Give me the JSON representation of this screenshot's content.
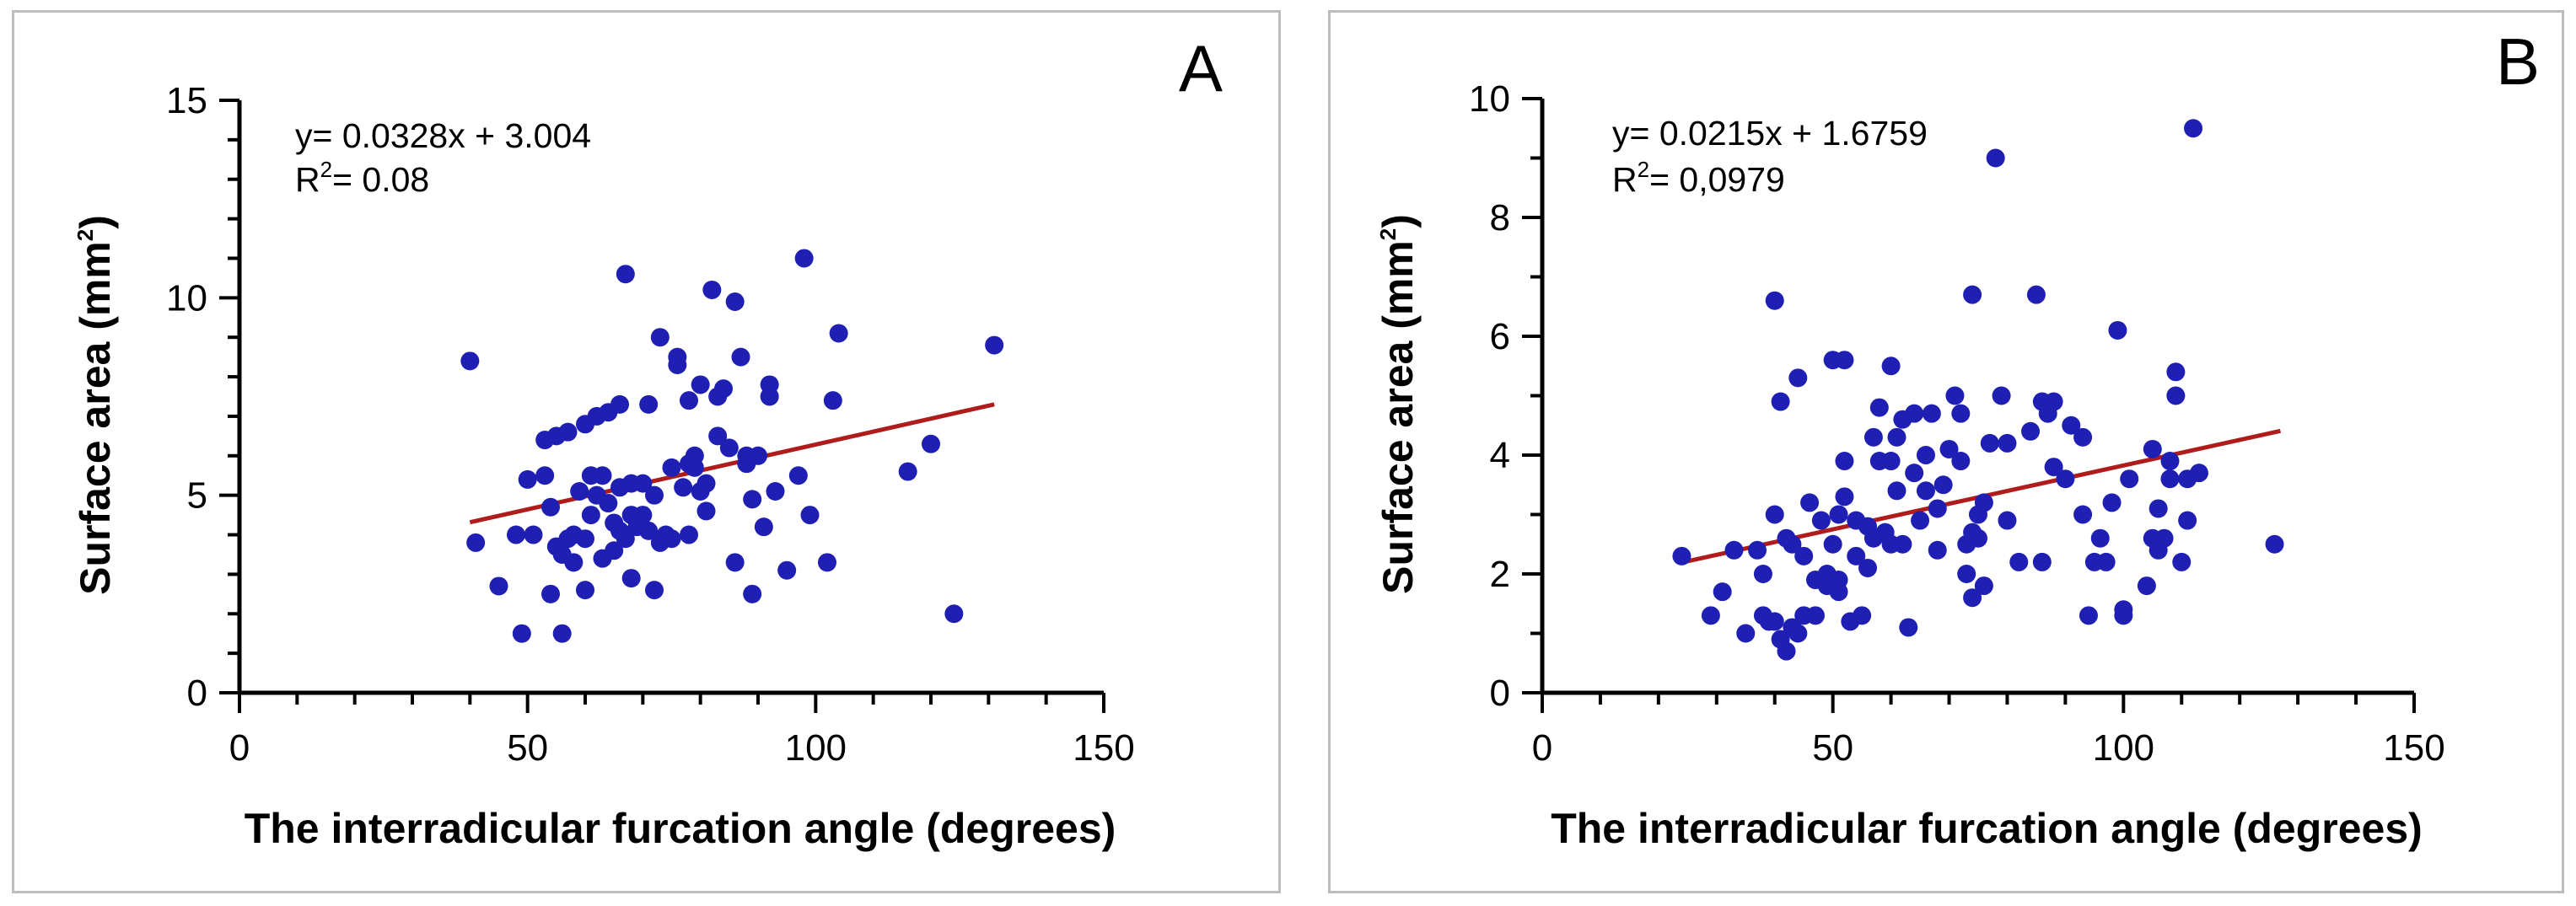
{
  "chart_data": [
    {
      "type": "scatter",
      "panel_label": "A",
      "xlabel": "The interradicular furcation angle (degrees)",
      "ylabel_main": "Surface area (mm",
      "ylabel_sup": "2",
      "ylabel_close": ")",
      "xlim": [
        0,
        150
      ],
      "ylim": [
        0,
        15
      ],
      "x_ticks": [
        0,
        50,
        100,
        150
      ],
      "y_ticks": [
        0,
        5,
        10,
        15
      ],
      "x_tick_labels": [
        "0",
        "50",
        "100",
        "150"
      ],
      "y_tick_labels": [
        "0",
        "5",
        "10",
        "15"
      ],
      "equation": "y= 0.0328x + 3.004",
      "r2_prefix": "R",
      "r2_sup": "2",
      "r2_value": "= 0.08",
      "marker_color": "#1f1fb4",
      "line_color": "#b01c1c",
      "regression": {
        "slope": 0.0328,
        "intercept": 3.004,
        "x_start": 40,
        "x_end": 131
      },
      "points": [
        [
          40,
          8.4
        ],
        [
          41,
          3.8
        ],
        [
          45,
          2.7
        ],
        [
          48,
          4.0
        ],
        [
          49,
          1.5
        ],
        [
          50,
          5.4
        ],
        [
          51,
          4.0
        ],
        [
          53,
          6.4
        ],
        [
          53,
          5.5
        ],
        [
          54,
          2.5
        ],
        [
          54,
          4.7
        ],
        [
          55,
          3.7
        ],
        [
          55,
          6.5
        ],
        [
          56,
          1.5
        ],
        [
          56,
          3.5
        ],
        [
          57,
          3.9
        ],
        [
          57,
          6.6
        ],
        [
          58,
          3.3
        ],
        [
          58,
          4.0
        ],
        [
          59,
          5.1
        ],
        [
          60,
          2.6
        ],
        [
          60,
          3.9
        ],
        [
          60,
          6.8
        ],
        [
          61,
          4.5
        ],
        [
          61,
          5.5
        ],
        [
          62,
          5.0
        ],
        [
          62,
          7.0
        ],
        [
          63,
          3.4
        ],
        [
          63,
          5.5
        ],
        [
          64,
          4.8
        ],
        [
          64,
          7.1
        ],
        [
          65,
          3.6
        ],
        [
          65,
          4.3
        ],
        [
          66,
          4.1
        ],
        [
          66,
          5.2
        ],
        [
          66,
          7.3
        ],
        [
          67,
          10.6
        ],
        [
          67,
          3.9
        ],
        [
          68,
          4.5
        ],
        [
          68,
          5.3
        ],
        [
          68,
          2.9
        ],
        [
          69,
          4.2
        ],
        [
          70,
          5.3
        ],
        [
          70,
          4.5
        ],
        [
          71,
          4.1
        ],
        [
          71,
          7.3
        ],
        [
          72,
          2.6
        ],
        [
          72,
          5.0
        ],
        [
          73,
          3.8
        ],
        [
          73,
          9.0
        ],
        [
          74,
          4.0
        ],
        [
          75,
          5.7
        ],
        [
          75,
          3.9
        ],
        [
          76,
          8.5
        ],
        [
          76,
          8.3
        ],
        [
          77,
          5.2
        ],
        [
          78,
          4.0
        ],
        [
          78,
          5.8
        ],
        [
          78,
          7.4
        ],
        [
          79,
          5.7
        ],
        [
          79,
          6.0
        ],
        [
          80,
          7.8
        ],
        [
          80,
          5.1
        ],
        [
          81,
          5.3
        ],
        [
          81,
          4.6
        ],
        [
          82,
          10.2
        ],
        [
          83,
          7.5
        ],
        [
          83,
          6.5
        ],
        [
          84,
          7.7
        ],
        [
          85,
          6.2
        ],
        [
          86,
          9.9
        ],
        [
          86,
          3.3
        ],
        [
          87,
          8.5
        ],
        [
          88,
          5.8
        ],
        [
          88,
          6.0
        ],
        [
          89,
          4.9
        ],
        [
          89,
          2.5
        ],
        [
          90,
          6.0
        ],
        [
          91,
          4.2
        ],
        [
          92,
          7.8
        ],
        [
          92,
          7.5
        ],
        [
          93,
          5.1
        ],
        [
          95,
          3.1
        ],
        [
          97,
          5.5
        ],
        [
          98,
          11.0
        ],
        [
          99,
          4.5
        ],
        [
          102,
          3.3
        ],
        [
          103,
          7.4
        ],
        [
          104,
          9.1
        ],
        [
          116,
          5.6
        ],
        [
          120,
          6.3
        ],
        [
          124,
          2.0
        ],
        [
          131,
          8.8
        ]
      ]
    },
    {
      "type": "scatter",
      "panel_label": "B",
      "xlabel": "The interradicular furcation angle (degrees)",
      "ylabel_main": "Surface area (mm",
      "ylabel_sup": "2",
      "ylabel_close": ")",
      "xlim": [
        0,
        150
      ],
      "ylim": [
        0,
        10
      ],
      "x_ticks": [
        0,
        50,
        100,
        150
      ],
      "y_ticks": [
        0,
        2,
        4,
        6,
        8,
        10
      ],
      "x_tick_labels": [
        "0",
        "50",
        "100",
        "150"
      ],
      "y_tick_labels": [
        "0",
        "2",
        "4",
        "6",
        "8",
        "10"
      ],
      "equation": "y= 0.0215x + 1.6759",
      "r2_prefix": "R",
      "r2_sup": "2",
      "r2_value": "= 0,0979",
      "marker_color": "#1f1fb4",
      "line_color": "#b01c1c",
      "regression": {
        "slope": 0.0215,
        "intercept": 1.6759,
        "x_start": 24,
        "x_end": 127
      },
      "points": [
        [
          24,
          2.3
        ],
        [
          29,
          1.3
        ],
        [
          31,
          1.7
        ],
        [
          33,
          2.4
        ],
        [
          35,
          1.0
        ],
        [
          37,
          2.4
        ],
        [
          38,
          1.3
        ],
        [
          38,
          2.0
        ],
        [
          39,
          1.2
        ],
        [
          40,
          1.2
        ],
        [
          40,
          3.0
        ],
        [
          40,
          6.6
        ],
        [
          41,
          0.9
        ],
        [
          41,
          4.9
        ],
        [
          42,
          0.7
        ],
        [
          42,
          2.6
        ],
        [
          43,
          2.5
        ],
        [
          43,
          1.1
        ],
        [
          44,
          5.3
        ],
        [
          44,
          1.0
        ],
        [
          45,
          1.3
        ],
        [
          45,
          2.3
        ],
        [
          46,
          3.2
        ],
        [
          47,
          1.9
        ],
        [
          47,
          1.3
        ],
        [
          48,
          2.9
        ],
        [
          49,
          1.8
        ],
        [
          49,
          2.0
        ],
        [
          50,
          5.6
        ],
        [
          50,
          2.5
        ],
        [
          51,
          1.7
        ],
        [
          51,
          1.9
        ],
        [
          51,
          3.0
        ],
        [
          52,
          5.6
        ],
        [
          52,
          3.3
        ],
        [
          52,
          3.9
        ],
        [
          53,
          1.2
        ],
        [
          54,
          2.3
        ],
        [
          54,
          2.9
        ],
        [
          55,
          1.3
        ],
        [
          56,
          2.8
        ],
        [
          56,
          2.1
        ],
        [
          57,
          4.3
        ],
        [
          57,
          2.6
        ],
        [
          58,
          4.8
        ],
        [
          58,
          3.9
        ],
        [
          59,
          2.7
        ],
        [
          60,
          5.5
        ],
        [
          60,
          2.5
        ],
        [
          60,
          3.9
        ],
        [
          61,
          3.4
        ],
        [
          61,
          4.3
        ],
        [
          62,
          2.5
        ],
        [
          62,
          4.6
        ],
        [
          63,
          1.1
        ],
        [
          64,
          4.7
        ],
        [
          64,
          3.7
        ],
        [
          65,
          2.9
        ],
        [
          66,
          3.4
        ],
        [
          66,
          4.0
        ],
        [
          67,
          4.7
        ],
        [
          68,
          3.1
        ],
        [
          68,
          2.4
        ],
        [
          69,
          3.5
        ],
        [
          70,
          4.1
        ],
        [
          71,
          5.0
        ],
        [
          72,
          3.9
        ],
        [
          72,
          4.7
        ],
        [
          73,
          2.5
        ],
        [
          73,
          2.0
        ],
        [
          74,
          6.7
        ],
        [
          74,
          2.7
        ],
        [
          74,
          1.6
        ],
        [
          75,
          2.6
        ],
        [
          75,
          3.0
        ],
        [
          76,
          1.8
        ],
        [
          76,
          3.2
        ],
        [
          77,
          4.2
        ],
        [
          78,
          9.0
        ],
        [
          79,
          5.0
        ],
        [
          80,
          4.2
        ],
        [
          80,
          2.9
        ],
        [
          82,
          2.2
        ],
        [
          84,
          4.4
        ],
        [
          85,
          6.7
        ],
        [
          86,
          2.2
        ],
        [
          86,
          4.9
        ],
        [
          87,
          4.7
        ],
        [
          88,
          3.8
        ],
        [
          88,
          4.9
        ],
        [
          90,
          3.6
        ],
        [
          91,
          4.5
        ],
        [
          93,
          3.0
        ],
        [
          93,
          4.3
        ],
        [
          94,
          1.3
        ],
        [
          95,
          2.2
        ],
        [
          96,
          2.6
        ],
        [
          97,
          2.2
        ],
        [
          98,
          3.2
        ],
        [
          99,
          6.1
        ],
        [
          100,
          1.4
        ],
        [
          100,
          1.3
        ],
        [
          101,
          3.6
        ],
        [
          104,
          1.8
        ],
        [
          105,
          2.6
        ],
        [
          105,
          4.1
        ],
        [
          106,
          3.1
        ],
        [
          106,
          2.4
        ],
        [
          107,
          2.6
        ],
        [
          108,
          3.6
        ],
        [
          108,
          3.9
        ],
        [
          109,
          5.4
        ],
        [
          109,
          5.0
        ],
        [
          110,
          2.2
        ],
        [
          111,
          3.6
        ],
        [
          111,
          2.9
        ],
        [
          112,
          9.5
        ],
        [
          113,
          3.7
        ],
        [
          126,
          2.5
        ]
      ]
    }
  ]
}
